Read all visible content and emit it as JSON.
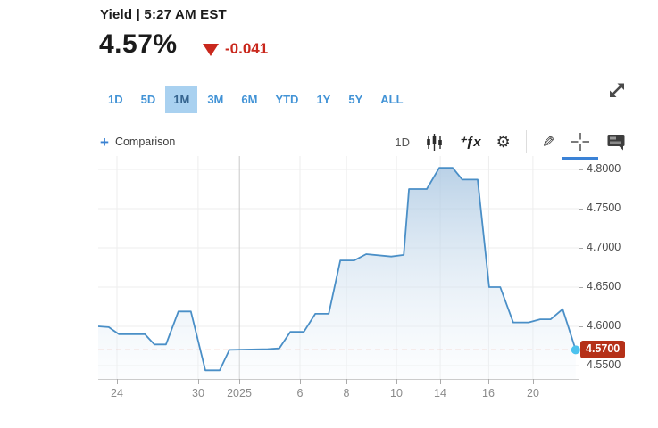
{
  "header": {
    "title": "Yield | 5:27 AM EST",
    "value": "4.57%",
    "change": "-0.041",
    "direction": "down"
  },
  "range_tabs": {
    "active": "1M",
    "items": [
      "1D",
      "5D",
      "1M",
      "3M",
      "6M",
      "YTD",
      "1Y",
      "5Y",
      "ALL"
    ]
  },
  "toolbar": {
    "plus_glyph": "+",
    "comparison_label": "Comparison",
    "interval_label": "1D",
    "function_glyph": "⁺ƒx",
    "gear_glyph": "⚙",
    "pencil_glyph": "✎",
    "icons": [
      "candlestick-icon",
      "function-icon",
      "gear-icon",
      "pencil-icon",
      "crosshair-icon",
      "news-quote-icon"
    ],
    "active_tool": "crosshair"
  },
  "colors": {
    "accent_blue": "#4293d6",
    "tab_active_bg": "#a9d1f0",
    "line_blue": "#4a8fc7",
    "area_top": "#a9c6e1",
    "area_bottom": "#f3f8fc",
    "dot_cyan": "#4cc2ee",
    "change_red": "#c9281d",
    "badge_red": "#b53018",
    "ref_line": "#dd6b4d",
    "grid": "#ededed",
    "grid_strong": "#c9c9c9",
    "axis_line": "#cccccc"
  },
  "chart_data": {
    "type": "area",
    "title": "",
    "xlabel": "",
    "ylabel": "",
    "legend": "none",
    "grid": true,
    "ylim": [
      4.533,
      4.817
    ],
    "yticks": [
      4.55,
      4.6,
      4.65,
      4.7,
      4.75,
      4.8
    ],
    "ytick_labels": [
      "4.5500",
      "4.6000",
      "4.6500",
      "4.7000",
      "4.7500",
      "4.8000"
    ],
    "xticks": [
      {
        "label": "24",
        "f": 0.039,
        "strong": false
      },
      {
        "label": "30",
        "f": 0.208,
        "strong": false
      },
      {
        "label": "2025",
        "f": 0.294,
        "strong": true
      },
      {
        "label": "6",
        "f": 0.42,
        "strong": false
      },
      {
        "label": "8",
        "f": 0.517,
        "strong": false
      },
      {
        "label": "10",
        "f": 0.621,
        "strong": false
      },
      {
        "label": "14",
        "f": 0.712,
        "strong": false
      },
      {
        "label": "16",
        "f": 0.813,
        "strong": false
      },
      {
        "label": "20",
        "f": 0.905,
        "strong": false
      }
    ],
    "points": [
      [
        0.0,
        4.6
      ],
      [
        0.022,
        4.599
      ],
      [
        0.043,
        4.59
      ],
      [
        0.097,
        4.59
      ],
      [
        0.117,
        4.577
      ],
      [
        0.141,
        4.577
      ],
      [
        0.167,
        4.619
      ],
      [
        0.193,
        4.619
      ],
      [
        0.223,
        4.544
      ],
      [
        0.253,
        4.544
      ],
      [
        0.273,
        4.57
      ],
      [
        0.353,
        4.571
      ],
      [
        0.377,
        4.572
      ],
      [
        0.4,
        4.593
      ],
      [
        0.428,
        4.593
      ],
      [
        0.452,
        4.616
      ],
      [
        0.48,
        4.616
      ],
      [
        0.504,
        4.684
      ],
      [
        0.533,
        4.684
      ],
      [
        0.558,
        4.692
      ],
      [
        0.61,
        4.689
      ],
      [
        0.636,
        4.691
      ],
      [
        0.647,
        4.775
      ],
      [
        0.684,
        4.775
      ],
      [
        0.71,
        4.802
      ],
      [
        0.738,
        4.802
      ],
      [
        0.758,
        4.787
      ],
      [
        0.79,
        4.787
      ],
      [
        0.814,
        4.65
      ],
      [
        0.837,
        4.65
      ],
      [
        0.864,
        4.605
      ],
      [
        0.896,
        4.605
      ],
      [
        0.92,
        4.609
      ],
      [
        0.942,
        4.609
      ],
      [
        0.967,
        4.622
      ],
      [
        0.994,
        4.57
      ]
    ],
    "reference_line": 4.57,
    "last_value": 4.57,
    "last_label": "4.5700"
  }
}
